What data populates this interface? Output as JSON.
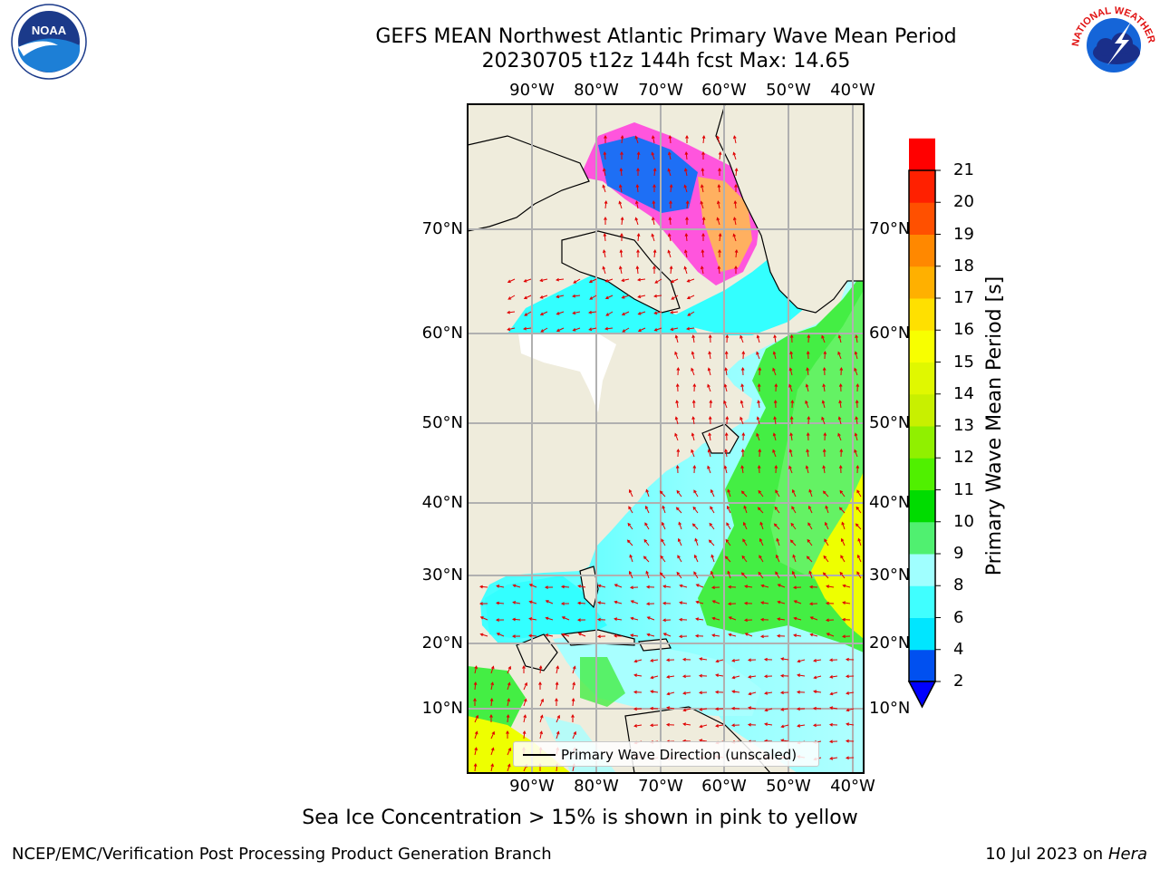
{
  "header": {
    "title_line1": "GEFS MEAN Northwest Atlantic Primary Wave Mean Period",
    "title_line2": "20230705 t12z 144h fcst   Max: 14.65"
  },
  "logos": {
    "left": {
      "name": "noaa-logo",
      "text": "NOAA",
      "ring_text": "NATIONAL OCEANIC AND ATMOSPHERIC ADMINISTRATION · U.S. DEPARTMENT OF COMMERCE"
    },
    "right": {
      "name": "nws-logo",
      "ring_text": "NATIONAL WEATHER SERVICE"
    }
  },
  "map": {
    "lon_labels": [
      "90°W",
      "80°W",
      "70°W",
      "60°W",
      "50°W",
      "40°W"
    ],
    "lat_labels": [
      "70°N",
      "60°N",
      "50°N",
      "40°N",
      "30°N",
      "20°N",
      "10°N"
    ],
    "colors": {
      "land": "#efecdc",
      "ocean_low": "#33ffff",
      "ocean_mid": "#a8ffff",
      "swell_green": "#44ee44",
      "swell_yellow": "#eeff00",
      "ice_pink": "#ff55dd",
      "ice_blue": "#1e6ff5",
      "arrow": "#e00000",
      "grid": "#b0b0b0"
    },
    "legend_label": "Primary Wave Direction (unscaled)"
  },
  "colorbar": {
    "label": "Primary Wave Mean Period [s]",
    "ticks": [
      "2",
      "4",
      "6",
      "8",
      "9",
      "10",
      "11",
      "12",
      "13",
      "14",
      "15",
      "16",
      "17",
      "18",
      "19",
      "20",
      "21"
    ],
    "colors": [
      "#0050f0",
      "#00e6ff",
      "#40ffff",
      "#a0ffff",
      "#50f070",
      "#00dc00",
      "#50f000",
      "#90f000",
      "#c8f000",
      "#e0f800",
      "#f8ff00",
      "#ffe000",
      "#ffb000",
      "#ff8800",
      "#ff5000",
      "#ff2000",
      "#ff0000"
    ],
    "extend_color": "#0000ff"
  },
  "annotation": "Sea Ice Concentration > 15% is shown in pink to yellow",
  "footer": {
    "left": "NCEP/EMC/Verification Post Processing Product Generation Branch",
    "right_date": "10 Jul 2023 on ",
    "right_host": "Hera"
  }
}
